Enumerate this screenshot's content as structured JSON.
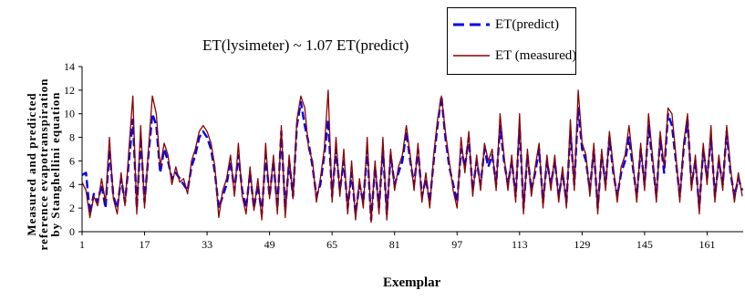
{
  "chart_data": {
    "type": "line",
    "annotation": "ET(lysimeter) ~ 1.07 ET(predict)",
    "xlabel": "Exemplar",
    "ylabel_lines": [
      "Measured and predicted",
      "reference evapotranspiration",
      "by Stanghellini equation"
    ],
    "xlim": [
      1,
      170
    ],
    "ylim": [
      0,
      14
    ],
    "x_ticks": [
      1,
      17,
      33,
      49,
      65,
      81,
      97,
      113,
      129,
      145,
      161
    ],
    "y_ticks": [
      0,
      2,
      4,
      6,
      8,
      10,
      12,
      14
    ],
    "grid": false,
    "legend_position": "top-right",
    "series": [
      {
        "name": "ET(predict)",
        "color": "#0000ee",
        "dash": "dashed",
        "values": [
          4.8,
          5.0,
          1.5,
          3.2,
          2.5,
          4.0,
          2.0,
          7.0,
          3.0,
          2.0,
          4.5,
          2.5,
          6.0,
          9.5,
          2.0,
          8.0,
          2.5,
          6.5,
          10.0,
          9.0,
          5.0,
          7.0,
          6.0,
          4.5,
          5.0,
          4.5,
          4.0,
          3.5,
          5.5,
          6.5,
          8.0,
          8.5,
          8.0,
          7.0,
          5.0,
          2.0,
          3.0,
          4.0,
          6.0,
          3.5,
          6.5,
          3.5,
          2.0,
          5.0,
          2.0,
          4.0,
          1.5,
          6.5,
          3.0,
          6.0,
          2.0,
          8.5,
          1.8,
          6.0,
          3.0,
          9.0,
          11.0,
          9.0,
          7.5,
          5.5,
          3.0,
          4.0,
          6.5,
          9.5,
          3.0,
          7.0,
          3.5,
          6.0,
          2.0,
          5.0,
          1.5,
          4.0,
          2.5,
          7.0,
          1.0,
          5.5,
          2.0,
          7.0,
          1.5,
          6.5,
          4.0,
          5.0,
          6.0,
          8.5,
          6.0,
          4.0,
          7.0,
          3.0,
          4.5,
          2.5,
          6.0,
          9.0,
          11.5,
          8.0,
          5.5,
          4.0,
          2.5,
          7.0,
          5.5,
          8.0,
          3.5,
          6.0,
          4.0,
          7.0,
          5.5,
          6.5,
          4.0,
          9.0,
          6.0,
          4.0,
          6.0,
          3.0,
          9.0,
          2.0,
          6.5,
          3.5,
          5.0,
          7.0,
          2.5,
          6.0,
          4.0,
          6.0,
          3.0,
          5.0,
          2.5,
          8.5,
          4.0,
          10.5,
          7.0,
          6.0,
          3.5,
          7.0,
          2.0,
          6.5,
          4.0,
          8.0,
          5.0,
          3.0,
          5.0,
          6.0,
          8.0,
          5.5,
          3.0,
          7.0,
          4.0,
          9.0,
          6.0,
          3.0,
          8.0,
          5.0,
          10.0,
          9.0,
          6.0,
          3.0,
          7.0,
          9.5,
          4.0,
          6.0,
          2.0,
          7.0,
          4.5,
          8.0,
          3.0,
          6.0,
          4.0,
          8.5,
          5.0,
          3.0,
          4.5,
          3.5
        ]
      },
      {
        "name": "ET (measured)",
        "color": "#8b0000",
        "dash": "solid",
        "values": [
          4.2,
          3.5,
          1.2,
          3.0,
          2.2,
          4.5,
          2.5,
          8.0,
          2.8,
          1.5,
          5.0,
          2.2,
          7.0,
          11.5,
          1.5,
          9.0,
          2.0,
          7.0,
          11.5,
          10.0,
          5.5,
          7.5,
          6.5,
          4.0,
          5.5,
          4.2,
          4.5,
          3.2,
          6.0,
          7.0,
          8.5,
          9.0,
          8.5,
          7.5,
          5.5,
          1.2,
          3.5,
          4.5,
          6.5,
          3.0,
          7.5,
          3.0,
          1.5,
          5.5,
          1.8,
          4.5,
          1.0,
          7.5,
          2.8,
          6.5,
          1.5,
          9.0,
          1.2,
          6.5,
          2.8,
          9.5,
          11.5,
          10.5,
          7.0,
          6.0,
          2.5,
          4.5,
          7.0,
          12.0,
          2.5,
          8.0,
          3.0,
          7.0,
          1.5,
          6.0,
          1.0,
          4.5,
          2.0,
          8.0,
          0.8,
          6.0,
          1.5,
          8.0,
          1.0,
          7.0,
          3.5,
          5.5,
          6.5,
          9.0,
          6.5,
          3.5,
          7.5,
          2.5,
          5.0,
          2.0,
          6.5,
          9.5,
          11.5,
          8.5,
          6.0,
          3.5,
          2.0,
          8.0,
          5.0,
          8.5,
          3.0,
          6.5,
          3.5,
          7.5,
          6.0,
          7.0,
          3.5,
          10.0,
          6.5,
          3.5,
          6.5,
          2.5,
          10.0,
          1.5,
          7.0,
          3.0,
          5.5,
          7.5,
          2.0,
          6.5,
          3.5,
          6.5,
          2.5,
          5.5,
          2.0,
          9.5,
          3.5,
          12.0,
          7.5,
          6.5,
          3.0,
          7.5,
          1.5,
          7.0,
          3.5,
          8.5,
          5.5,
          2.5,
          5.5,
          6.5,
          9.0,
          6.0,
          2.5,
          7.5,
          3.5,
          10.0,
          6.5,
          2.5,
          8.5,
          5.5,
          10.5,
          10.0,
          6.5,
          2.5,
          7.5,
          10.0,
          3.5,
          6.5,
          1.5,
          7.5,
          4.0,
          9.0,
          2.5,
          6.5,
          3.5,
          9.0,
          5.5,
          2.5,
          5.0,
          3.0
        ]
      }
    ]
  }
}
